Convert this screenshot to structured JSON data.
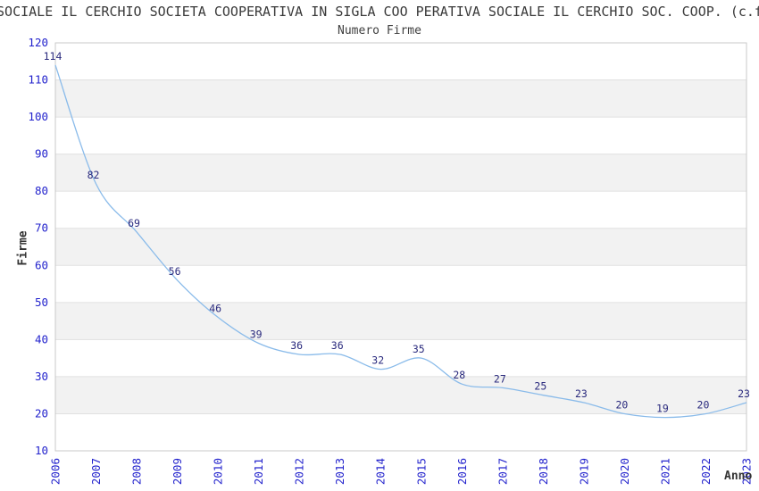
{
  "header": {
    "title": "SOCIALE IL CERCHIO SOCIETA COOPERATIVA IN SIGLA COO PERATIVA SOCIALE IL CERCHIO SOC. COOP. (c.f",
    "subtitle": "Numero Firme"
  },
  "chart_data": {
    "type": "line",
    "title": "Numero Firme",
    "xlabel": "Anno",
    "ylabel": "Firme",
    "categories": [
      "2006",
      "2007",
      "2008",
      "2009",
      "2010",
      "2011",
      "2012",
      "2013",
      "2014",
      "2015",
      "2016",
      "2017",
      "2018",
      "2019",
      "2020",
      "2021",
      "2022",
      "2023"
    ],
    "series": [
      {
        "name": "Numero Firme",
        "values": [
          114,
          82,
          69,
          56,
          46,
          39,
          36,
          36,
          32,
          35,
          28,
          27,
          25,
          23,
          20,
          19,
          20,
          23
        ]
      }
    ],
    "ylim": [
      10,
      120
    ],
    "ytick_step": 10,
    "grid": "horizontal-bands",
    "legend": "none",
    "data_labels": true,
    "colors": {
      "line": "#8abbea",
      "tick_label": "#2424cd",
      "point_label": "#29297d",
      "band": "#f2f2f2",
      "gridline": "#e0e0e0",
      "border": "#c9c9c9",
      "title": "#3a3a3a"
    }
  }
}
